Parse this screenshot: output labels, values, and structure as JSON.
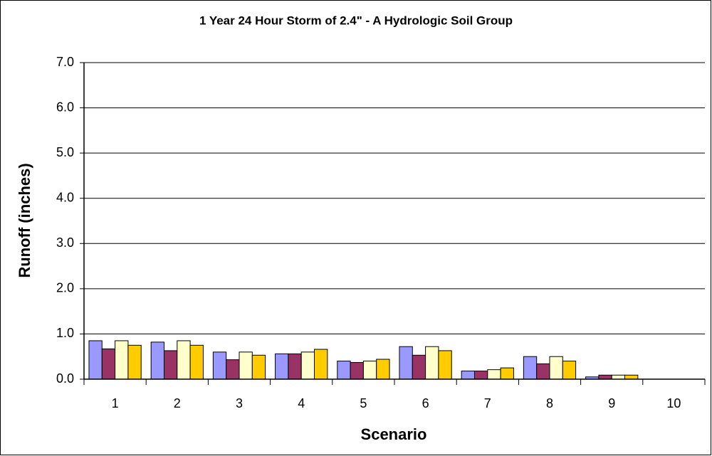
{
  "chart_data": {
    "type": "bar",
    "title": "1 Year 24 Hour Storm of 2.4\" - A Hydrologic Soil Group",
    "x_label": "Scenario",
    "y_label": "Runoff (inches)",
    "categories": [
      "1",
      "2",
      "3",
      "4",
      "5",
      "6",
      "7",
      "8",
      "9",
      "10"
    ],
    "series": [
      {
        "color": "#9999ff",
        "values": [
          0.85,
          0.82,
          0.6,
          0.56,
          0.4,
          0.72,
          0.18,
          0.5,
          0.05,
          0
        ]
      },
      {
        "color": "#993366",
        "values": [
          0.67,
          0.63,
          0.43,
          0.56,
          0.37,
          0.53,
          0.18,
          0.34,
          0.09,
          0
        ]
      },
      {
        "color": "#ffffcc",
        "values": [
          0.85,
          0.85,
          0.6,
          0.6,
          0.4,
          0.72,
          0.21,
          0.5,
          0.09,
          0
        ]
      },
      {
        "color": "#ffcc00",
        "values": [
          0.75,
          0.75,
          0.53,
          0.66,
          0.44,
          0.63,
          0.25,
          0.4,
          0.09,
          0
        ]
      }
    ],
    "ylim": [
      0,
      7
    ],
    "yticks": [
      {
        "value": 0,
        "label": "0.0"
      },
      {
        "value": 1,
        "label": "1.0"
      },
      {
        "value": 2,
        "label": "2.0"
      },
      {
        "value": 3,
        "label": "3.0"
      },
      {
        "value": 4,
        "label": "4.0"
      },
      {
        "value": 5,
        "label": "5.0"
      },
      {
        "value": 6,
        "label": "6.0"
      },
      {
        "value": 7,
        "label": "7.0"
      }
    ],
    "grid": true
  }
}
